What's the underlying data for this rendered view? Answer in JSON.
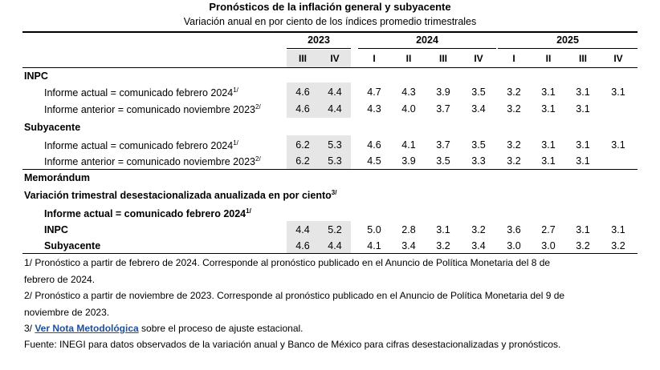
{
  "title": "Pronósticos de la inflación general y subyacente",
  "subtitle": "Variación anual en por ciento de los índices promedio trimestrales",
  "years": [
    "2023",
    "2024",
    "2025"
  ],
  "quarters": [
    "III",
    "IV",
    "I",
    "II",
    "III",
    "IV",
    "I",
    "II",
    "III",
    "IV"
  ],
  "sections": {
    "inpc": "INPC",
    "subyacente": "Subyacente",
    "memorandum": "Memorándum",
    "variacion": "Variación trimestral desestacionalizada anualizada en por ciento",
    "variacion_note": "3/"
  },
  "labels": {
    "actual": "Informe actual = comunicado febrero 2024",
    "actual_note": "1/",
    "anterior": "Informe anterior = comunicado noviembre 2023",
    "anterior_note": "2/",
    "memo_inpc": "INPC",
    "memo_sub": "Subyacente"
  },
  "rows": {
    "inpc_actual": [
      "4.6",
      "4.4",
      "4.7",
      "4.3",
      "3.9",
      "3.5",
      "3.2",
      "3.1",
      "3.1",
      "3.1"
    ],
    "inpc_anterior": [
      "4.6",
      "4.4",
      "4.3",
      "4.0",
      "3.7",
      "3.4",
      "3.2",
      "3.1",
      "3.1",
      ""
    ],
    "sub_actual": [
      "6.2",
      "5.3",
      "4.6",
      "4.1",
      "3.7",
      "3.5",
      "3.2",
      "3.1",
      "3.1",
      "3.1"
    ],
    "sub_anterior": [
      "6.2",
      "5.3",
      "4.5",
      "3.9",
      "3.5",
      "3.3",
      "3.2",
      "3.1",
      "3.1",
      ""
    ],
    "memo_inpc": [
      "4.4",
      "5.2",
      "5.0",
      "2.8",
      "3.1",
      "3.2",
      "3.6",
      "2.7",
      "3.1",
      "3.1"
    ],
    "memo_sub": [
      "4.6",
      "4.4",
      "4.1",
      "3.4",
      "3.2",
      "3.4",
      "3.0",
      "3.0",
      "3.2",
      "3.2"
    ]
  },
  "notes": {
    "n1a": "1/ Pronóstico a partir de febrero de 2024. Corresponde al pronóstico publicado en el Anuncio de Política Monetaria del 8 de",
    "n1b": "febrero de 2024.",
    "n2a": "2/ Pronóstico a partir de noviembre de 2023. Corresponde al pronóstico publicado en el Anuncio de Política Monetaria del 9 de",
    "n2b": "noviembre de 2023.",
    "n3_prefix": "3/ ",
    "n3_link": "Ver Nota Metodológica",
    "n3_suffix": " sobre el proceso de ajuste estacional.",
    "fuente": "Fuente: INEGI para datos observados de la variación anual y Banco de México para cifras desestacionalizadas y pronósticos."
  },
  "colors": {
    "shade": "#e6e6e6",
    "link": "#1f4e9a"
  }
}
